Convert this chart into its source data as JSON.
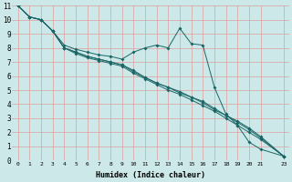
{
  "xlabel": "Humidex (Indice chaleur)",
  "bg_color": "#cce8e8",
  "grid_color": "#dda0a0",
  "line_color": "#1a6666",
  "xlim": [
    -0.5,
    23.5
  ],
  "ylim": [
    0,
    11
  ],
  "yticks": [
    0,
    1,
    2,
    3,
    4,
    5,
    6,
    7,
    8,
    9,
    10,
    11
  ],
  "xtick_vals": [
    0,
    1,
    2,
    3,
    4,
    5,
    6,
    7,
    8,
    9,
    10,
    11,
    12,
    13,
    14,
    15,
    16,
    17,
    18,
    19,
    20,
    21,
    23
  ],
  "x_values": [
    0,
    1,
    2,
    3,
    4,
    5,
    6,
    7,
    8,
    9,
    10,
    11,
    12,
    13,
    14,
    15,
    16,
    17,
    18,
    19,
    20,
    21,
    23
  ],
  "line1": [
    11.0,
    10.2,
    10.0,
    9.2,
    8.2,
    7.9,
    7.7,
    7.5,
    7.4,
    7.2,
    7.7,
    8.0,
    8.2,
    8.0,
    9.4,
    8.3,
    8.2,
    5.2,
    3.3,
    2.5,
    1.3,
    0.8,
    0.3
  ],
  "line2": [
    11.0,
    10.2,
    10.0,
    9.2,
    8.0,
    7.7,
    7.4,
    7.2,
    7.0,
    6.8,
    6.4,
    5.9,
    5.5,
    5.2,
    4.8,
    4.5,
    4.1,
    3.6,
    3.2,
    2.8,
    2.3,
    1.7,
    0.3
  ],
  "line3": [
    11.0,
    10.2,
    10.0,
    9.2,
    8.0,
    7.6,
    7.3,
    7.1,
    6.9,
    6.7,
    6.2,
    5.8,
    5.4,
    5.0,
    4.7,
    4.3,
    3.9,
    3.5,
    3.0,
    2.5,
    2.0,
    1.5,
    0.3
  ],
  "line4": [
    11.0,
    10.2,
    10.0,
    9.2,
    8.0,
    7.7,
    7.4,
    7.2,
    7.0,
    6.8,
    6.3,
    5.9,
    5.5,
    5.2,
    4.9,
    4.5,
    4.2,
    3.7,
    3.2,
    2.7,
    2.2,
    1.6,
    0.3
  ]
}
